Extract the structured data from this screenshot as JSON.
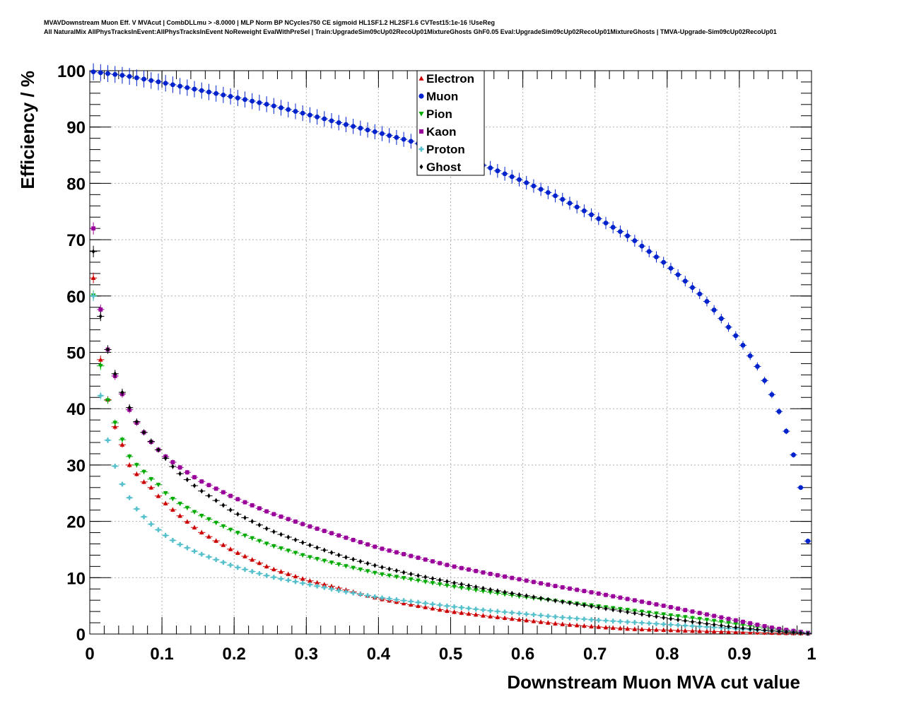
{
  "header": {
    "line1": "MVAVDownstream Muon Eff. V MVAcut | CombDLLmu > -8.0000 | MLP Norm BP NCycles750 CE sigmoid HL1SF1.2 HL2SF1.6 CVTest15:1e-16 !UseReg",
    "line2": "All NaturalMix AllPhysTracksInEvent:AllPhysTracksInEvent NoReweight EvalWithPreSel | Train:UpgradeSim09cUp02RecoUp01MixtureGhosts GhF0.05 Eval:UpgradeSim09cUp02RecoUp01MixtureGhosts | TMVA-Upgrade-Sim09cUp02RecoUp01"
  },
  "chart_data": {
    "type": "scatter",
    "title": "",
    "xlabel": "Downstream Muon MVA cut value",
    "ylabel": "Efficiency / %",
    "xlim": [
      0,
      1
    ],
    "ylim": [
      0,
      100
    ],
    "grid": true,
    "legend_position": "top-center",
    "x_ticks": [
      "0",
      "0.1",
      "0.2",
      "0.3",
      "0.4",
      "0.5",
      "0.6",
      "0.7",
      "0.8",
      "0.9",
      "1"
    ],
    "y_ticks": [
      "0",
      "10",
      "20",
      "30",
      "40",
      "50",
      "60",
      "70",
      "80",
      "90",
      "100"
    ],
    "bin_width": 0.01,
    "series": [
      {
        "name": "Electron",
        "color": "#cc0000",
        "marker": "triangle-up",
        "anchors": [
          [
            0.005,
            63.2
          ],
          [
            0.015,
            48.7
          ],
          [
            0.025,
            41.6
          ],
          [
            0.035,
            36.8
          ],
          [
            0.045,
            33.6
          ],
          [
            0.055,
            30.0
          ],
          [
            0.065,
            28.4
          ],
          [
            0.075,
            27.0
          ],
          [
            0.085,
            26.0
          ],
          [
            0.095,
            24.5
          ],
          [
            0.105,
            23.2
          ],
          [
            0.12,
            21.5
          ],
          [
            0.15,
            18.4
          ],
          [
            0.2,
            14.7
          ],
          [
            0.25,
            11.7
          ],
          [
            0.3,
            9.6
          ],
          [
            0.35,
            8.0
          ],
          [
            0.4,
            6.3
          ],
          [
            0.45,
            5.1
          ],
          [
            0.5,
            4.0
          ],
          [
            0.55,
            3.2
          ],
          [
            0.6,
            2.5
          ],
          [
            0.65,
            1.8
          ],
          [
            0.7,
            1.3
          ],
          [
            0.75,
            0.9
          ],
          [
            0.8,
            0.7
          ],
          [
            0.85,
            0.5
          ],
          [
            0.9,
            0.35
          ],
          [
            0.95,
            0.2
          ],
          [
            0.995,
            0.1
          ]
        ]
      },
      {
        "name": "Muon",
        "color": "#0022cc",
        "marker": "circle",
        "anchors": [
          [
            0.005,
            99.8
          ],
          [
            0.05,
            99.1
          ],
          [
            0.1,
            97.9
          ],
          [
            0.15,
            96.6
          ],
          [
            0.2,
            95.3
          ],
          [
            0.25,
            93.9
          ],
          [
            0.3,
            92.3
          ],
          [
            0.35,
            90.6
          ],
          [
            0.4,
            89.0
          ],
          [
            0.45,
            87.3
          ],
          [
            0.5,
            85.0
          ],
          [
            0.55,
            83.0
          ],
          [
            0.6,
            80.4
          ],
          [
            0.65,
            77.5
          ],
          [
            0.7,
            74.1
          ],
          [
            0.75,
            70.3
          ],
          [
            0.8,
            65.5
          ],
          [
            0.85,
            59.8
          ],
          [
            0.9,
            52.2
          ],
          [
            0.925,
            47.5
          ],
          [
            0.945,
            42.5
          ],
          [
            0.955,
            39.5
          ],
          [
            0.965,
            36.0
          ],
          [
            0.975,
            31.8
          ],
          [
            0.985,
            26.0
          ],
          [
            0.995,
            16.5
          ]
        ]
      },
      {
        "name": "Pion",
        "color": "#00aa00",
        "marker": "triangle-down",
        "anchors": [
          [
            0.005,
            60.1
          ],
          [
            0.015,
            47.6
          ],
          [
            0.025,
            41.5
          ],
          [
            0.035,
            37.5
          ],
          [
            0.045,
            34.5
          ],
          [
            0.055,
            31.5
          ],
          [
            0.065,
            30.0
          ],
          [
            0.075,
            28.8
          ],
          [
            0.085,
            27.5
          ],
          [
            0.095,
            26.5
          ],
          [
            0.105,
            25.0
          ],
          [
            0.12,
            23.5
          ],
          [
            0.15,
            21.3
          ],
          [
            0.2,
            18.2
          ],
          [
            0.25,
            15.8
          ],
          [
            0.3,
            13.8
          ],
          [
            0.35,
            12.2
          ],
          [
            0.4,
            10.7
          ],
          [
            0.45,
            9.6
          ],
          [
            0.5,
            8.5
          ],
          [
            0.55,
            7.5
          ],
          [
            0.6,
            6.6
          ],
          [
            0.65,
            5.8
          ],
          [
            0.7,
            5.0
          ],
          [
            0.75,
            4.2
          ],
          [
            0.8,
            3.4
          ],
          [
            0.85,
            2.6
          ],
          [
            0.9,
            1.7
          ],
          [
            0.95,
            0.8
          ],
          [
            0.995,
            0.2
          ]
        ]
      },
      {
        "name": "Kaon",
        "color": "#990099",
        "marker": "square",
        "anchors": [
          [
            0.005,
            72.0
          ],
          [
            0.015,
            57.6
          ],
          [
            0.025,
            50.5
          ],
          [
            0.035,
            45.8
          ],
          [
            0.045,
            42.6
          ],
          [
            0.055,
            39.8
          ],
          [
            0.065,
            37.5
          ],
          [
            0.075,
            35.8
          ],
          [
            0.085,
            34.1
          ],
          [
            0.095,
            32.7
          ],
          [
            0.105,
            31.5
          ],
          [
            0.12,
            30.0
          ],
          [
            0.15,
            27.4
          ],
          [
            0.2,
            24.2
          ],
          [
            0.25,
            21.5
          ],
          [
            0.3,
            19.3
          ],
          [
            0.35,
            17.3
          ],
          [
            0.4,
            15.3
          ],
          [
            0.45,
            13.7
          ],
          [
            0.5,
            12.1
          ],
          [
            0.55,
            10.8
          ],
          [
            0.6,
            9.6
          ],
          [
            0.65,
            8.4
          ],
          [
            0.7,
            7.3
          ],
          [
            0.75,
            6.1
          ],
          [
            0.8,
            4.9
          ],
          [
            0.85,
            3.6
          ],
          [
            0.9,
            2.3
          ],
          [
            0.95,
            1.0
          ],
          [
            0.995,
            0.2
          ]
        ]
      },
      {
        "name": "Proton",
        "color": "#55c0cc",
        "marker": "cross",
        "anchors": [
          [
            0.005,
            60.0
          ],
          [
            0.015,
            42.3
          ],
          [
            0.025,
            34.4
          ],
          [
            0.035,
            29.8
          ],
          [
            0.045,
            26.6
          ],
          [
            0.055,
            24.2
          ],
          [
            0.065,
            22.2
          ],
          [
            0.075,
            20.8
          ],
          [
            0.085,
            19.5
          ],
          [
            0.095,
            18.5
          ],
          [
            0.105,
            17.5
          ],
          [
            0.12,
            16.2
          ],
          [
            0.15,
            14.4
          ],
          [
            0.2,
            12.0
          ],
          [
            0.25,
            10.2
          ],
          [
            0.3,
            8.9
          ],
          [
            0.35,
            7.6
          ],
          [
            0.4,
            6.5
          ],
          [
            0.45,
            5.7
          ],
          [
            0.5,
            4.9
          ],
          [
            0.55,
            4.2
          ],
          [
            0.6,
            3.6
          ],
          [
            0.65,
            3.0
          ],
          [
            0.7,
            2.5
          ],
          [
            0.75,
            2.1
          ],
          [
            0.8,
            1.7
          ],
          [
            0.85,
            1.3
          ],
          [
            0.9,
            0.9
          ],
          [
            0.95,
            0.5
          ],
          [
            0.995,
            0.1
          ]
        ]
      },
      {
        "name": "Ghost",
        "color": "#000000",
        "marker": "diamond",
        "anchors": [
          [
            0.005,
            67.9
          ],
          [
            0.015,
            56.4
          ],
          [
            0.025,
            50.5
          ],
          [
            0.035,
            46.2
          ],
          [
            0.045,
            42.9
          ],
          [
            0.055,
            40.2
          ],
          [
            0.065,
            37.7
          ],
          [
            0.075,
            35.8
          ],
          [
            0.085,
            34.2
          ],
          [
            0.095,
            32.7
          ],
          [
            0.105,
            31.2
          ],
          [
            0.12,
            29.0
          ],
          [
            0.15,
            25.8
          ],
          [
            0.2,
            21.6
          ],
          [
            0.25,
            18.4
          ],
          [
            0.3,
            16.0
          ],
          [
            0.35,
            13.8
          ],
          [
            0.4,
            12.0
          ],
          [
            0.45,
            10.5
          ],
          [
            0.5,
            9.2
          ],
          [
            0.55,
            8.0
          ],
          [
            0.6,
            6.9
          ],
          [
            0.65,
            5.8
          ],
          [
            0.7,
            4.8
          ],
          [
            0.75,
            3.8
          ],
          [
            0.8,
            2.8
          ],
          [
            0.85,
            1.9
          ],
          [
            0.9,
            1.1
          ],
          [
            0.95,
            0.5
          ],
          [
            0.995,
            0.1
          ]
        ]
      }
    ]
  }
}
